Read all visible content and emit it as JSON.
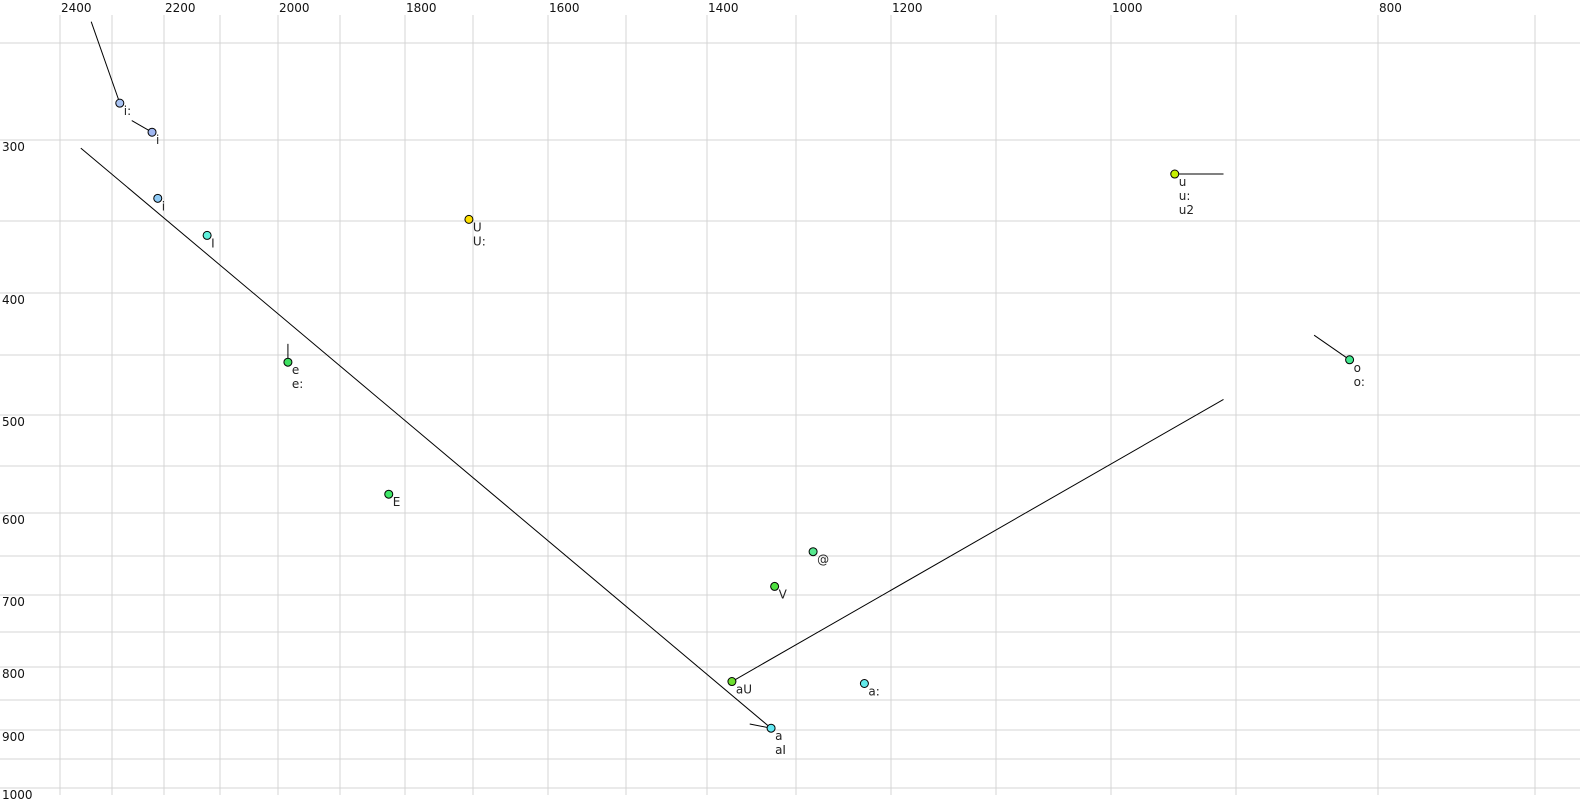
{
  "chart_data": {
    "type": "scatter",
    "title": "",
    "xlabel": "",
    "ylabel": "",
    "x_axis": {
      "reversed": true,
      "position": "top",
      "tick_labels": [
        2400,
        2200,
        2000,
        1800,
        1600,
        1400,
        1200,
        1000,
        800
      ],
      "gridlines": [
        2400,
        2300,
        2200,
        2100,
        2000,
        1900,
        1800,
        1700,
        1600,
        1500,
        1400,
        1300,
        1200,
        1100,
        1000,
        900,
        800,
        700
      ]
    },
    "y_axis": {
      "reversed": true,
      "position": "left",
      "tick_labels": [
        300,
        400,
        500,
        600,
        700,
        800,
        900,
        1000
      ],
      "gridlines": [
        250,
        300,
        350,
        400,
        450,
        500,
        550,
        600,
        650,
        700,
        750,
        800,
        850,
        900,
        950,
        1000
      ]
    },
    "grid": true,
    "grid_color": "#d4d4d4",
    "points": [
      {
        "labels": [
          "i:"
        ],
        "f2": 2285,
        "f1": 281,
        "color": "#a9c3f2"
      },
      {
        "labels": [
          "i"
        ],
        "f2": 2223,
        "f1": 296,
        "color": "#9fb6f0"
      },
      {
        "labels": [
          "i"
        ],
        "f2": 2212,
        "f1": 336,
        "color": "#8ecaf6"
      },
      {
        "labels": [
          "I"
        ],
        "f2": 2123,
        "f1": 360,
        "color": "#5ff0dc"
      },
      {
        "labels": [
          "U",
          "U:"
        ],
        "f2": 1706,
        "f1": 349,
        "color": "#ffe000"
      },
      {
        "labels": [
          "u",
          "u:",
          "u2"
        ],
        "f2": 949,
        "f1": 321,
        "color": "#c6f000"
      },
      {
        "labels": [
          "e",
          "e:"
        ],
        "f2": 1984,
        "f1": 456,
        "color": "#3ee060"
      },
      {
        "labels": [
          "E"
        ],
        "f2": 1825,
        "f1": 580,
        "color": "#3fe868"
      },
      {
        "labels": [
          "@"
        ],
        "f2": 1282,
        "f1": 645,
        "color": "#55e88e"
      },
      {
        "labels": [
          "V"
        ],
        "f2": 1324,
        "f1": 689,
        "color": "#4ee040"
      },
      {
        "labels": [
          "aU"
        ],
        "f2": 1372,
        "f1": 822,
        "color": "#6ee030"
      },
      {
        "labels": [
          "a:"
        ],
        "f2": 1228,
        "f1": 825,
        "color": "#62eaea"
      },
      {
        "labels": [
          "a",
          "aI"
        ],
        "f2": 1328,
        "f1": 897,
        "color": "#62e8f2"
      },
      {
        "labels": [
          "o",
          "o:"
        ],
        "f2": 820,
        "f1": 454,
        "color": "#44e890"
      }
    ],
    "trajectories": [
      {
        "from": [
          2340,
          239
        ],
        "to": [
          2285,
          281
        ]
      },
      {
        "from": [
          2262,
          290
        ],
        "to": [
          2223,
          296
        ]
      },
      {
        "from": [
          2360,
          305
        ],
        "to": [
          1328,
          897
        ]
      },
      {
        "from": [
          1984,
          441
        ],
        "to": [
          1984,
          456
        ]
      },
      {
        "from": [
          910,
          321
        ],
        "to": [
          949,
          321
        ]
      },
      {
        "from": [
          845,
          434
        ],
        "to": [
          820,
          454
        ]
      },
      {
        "from": [
          910,
          487
        ],
        "to": [
          1372,
          822
        ]
      },
      {
        "from": [
          1352,
          890
        ],
        "to": [
          1328,
          897
        ]
      }
    ]
  }
}
